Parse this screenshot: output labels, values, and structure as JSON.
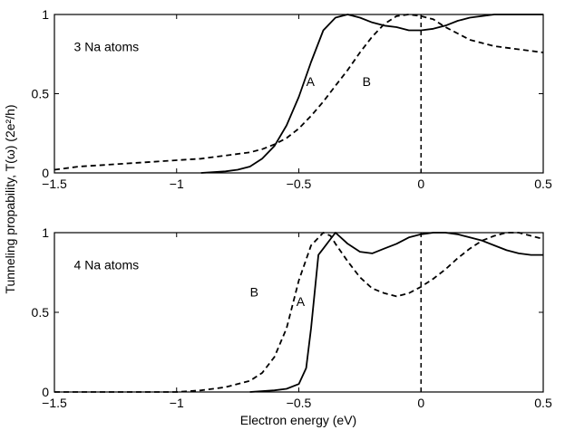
{
  "figure": {
    "ylabel": "Tunneling propability, T(ω) (2e²/h)",
    "xlabel": "Electron energy (eV)"
  },
  "chart_data": [
    {
      "type": "line",
      "panel": "top",
      "xlim": [
        -1.5,
        0.5
      ],
      "ylim": [
        0,
        1
      ],
      "xticks": [
        -1.5,
        -1,
        -0.5,
        0,
        0.5
      ],
      "xtick_labels": [
        "−1.5",
        "−1",
        "−0.5",
        "0",
        "0.5"
      ],
      "yticks": [
        0,
        0.5,
        1
      ],
      "ytick_labels": [
        "0",
        "0.5",
        "1"
      ],
      "annotations": [
        {
          "text": "3 Na atoms",
          "x": -1.42,
          "y": 0.77
        },
        {
          "text": "A",
          "x": -0.47,
          "y": 0.55
        },
        {
          "text": "B",
          "x": -0.24,
          "y": 0.55
        }
      ],
      "vline": {
        "x": 0,
        "style": "dashed"
      },
      "series": [
        {
          "label": "A",
          "style": "solid",
          "x": [
            -0.9,
            -0.8,
            -0.75,
            -0.7,
            -0.65,
            -0.6,
            -0.55,
            -0.5,
            -0.45,
            -0.4,
            -0.35,
            -0.3,
            -0.25,
            -0.2,
            -0.15,
            -0.1,
            -0.05,
            0,
            0.05,
            0.1,
            0.15,
            0.2,
            0.3,
            0.4,
            0.5
          ],
          "y": [
            0.0,
            0.01,
            0.02,
            0.04,
            0.09,
            0.17,
            0.3,
            0.48,
            0.7,
            0.9,
            0.98,
            1.0,
            0.98,
            0.95,
            0.93,
            0.92,
            0.9,
            0.9,
            0.91,
            0.93,
            0.96,
            0.98,
            1.0,
            1.0,
            1.0
          ]
        },
        {
          "label": "B",
          "style": "dashed",
          "x": [
            -1.5,
            -1.4,
            -1.3,
            -1.2,
            -1.1,
            -1.0,
            -0.9,
            -0.8,
            -0.7,
            -0.65,
            -0.6,
            -0.55,
            -0.5,
            -0.45,
            -0.4,
            -0.35,
            -0.3,
            -0.25,
            -0.2,
            -0.15,
            -0.1,
            -0.05,
            0,
            0.05,
            0.1,
            0.15,
            0.2,
            0.3,
            0.4,
            0.5
          ],
          "y": [
            0.02,
            0.04,
            0.05,
            0.06,
            0.07,
            0.08,
            0.09,
            0.11,
            0.13,
            0.15,
            0.18,
            0.22,
            0.28,
            0.36,
            0.45,
            0.55,
            0.65,
            0.76,
            0.86,
            0.94,
            0.99,
            1.0,
            0.99,
            0.97,
            0.92,
            0.88,
            0.84,
            0.8,
            0.78,
            0.76
          ]
        }
      ]
    },
    {
      "type": "line",
      "panel": "bottom",
      "xlim": [
        -1.5,
        0.5
      ],
      "ylim": [
        0,
        1
      ],
      "xticks": [
        -1.5,
        -1,
        -0.5,
        0,
        0.5
      ],
      "xtick_labels": [
        "−1.5",
        "−1",
        "−0.5",
        "0",
        "0.5"
      ],
      "yticks": [
        0,
        0.5,
        1
      ],
      "ytick_labels": [
        "0",
        "0.5",
        "1"
      ],
      "annotations": [
        {
          "text": "4 Na atoms",
          "x": -1.42,
          "y": 0.77
        },
        {
          "text": "B",
          "x": -0.7,
          "y": 0.6
        },
        {
          "text": "A",
          "x": -0.51,
          "y": 0.54
        }
      ],
      "vline": {
        "x": 0,
        "style": "dashed"
      },
      "series": [
        {
          "label": "A",
          "style": "solid",
          "x": [
            -0.7,
            -0.6,
            -0.55,
            -0.5,
            -0.47,
            -0.45,
            -0.42,
            -0.4,
            -0.37,
            -0.35,
            -0.3,
            -0.25,
            -0.2,
            -0.15,
            -0.1,
            -0.05,
            0,
            0.05,
            0.1,
            0.15,
            0.2,
            0.25,
            0.3,
            0.35,
            0.4,
            0.45,
            0.5
          ],
          "y": [
            0.0,
            0.01,
            0.02,
            0.05,
            0.15,
            0.4,
            0.86,
            0.9,
            0.96,
            1.0,
            0.93,
            0.88,
            0.87,
            0.9,
            0.93,
            0.97,
            0.99,
            1.0,
            1.0,
            0.99,
            0.97,
            0.95,
            0.92,
            0.89,
            0.87,
            0.86,
            0.86
          ]
        },
        {
          "label": "B",
          "style": "dashed",
          "x": [
            -1.5,
            -1.2,
            -1.0,
            -0.9,
            -0.8,
            -0.7,
            -0.65,
            -0.6,
            -0.55,
            -0.5,
            -0.45,
            -0.4,
            -0.37,
            -0.35,
            -0.3,
            -0.25,
            -0.2,
            -0.15,
            -0.1,
            -0.05,
            0,
            0.05,
            0.1,
            0.15,
            0.2,
            0.25,
            0.3,
            0.35,
            0.4,
            0.45,
            0.5
          ],
          "y": [
            0.0,
            0.0,
            0.0,
            0.01,
            0.03,
            0.07,
            0.12,
            0.22,
            0.4,
            0.7,
            0.92,
            1.0,
            0.98,
            0.93,
            0.82,
            0.72,
            0.65,
            0.62,
            0.6,
            0.62,
            0.66,
            0.71,
            0.77,
            0.84,
            0.9,
            0.95,
            0.98,
            1.0,
            1.0,
            0.98,
            0.96
          ]
        }
      ]
    }
  ]
}
